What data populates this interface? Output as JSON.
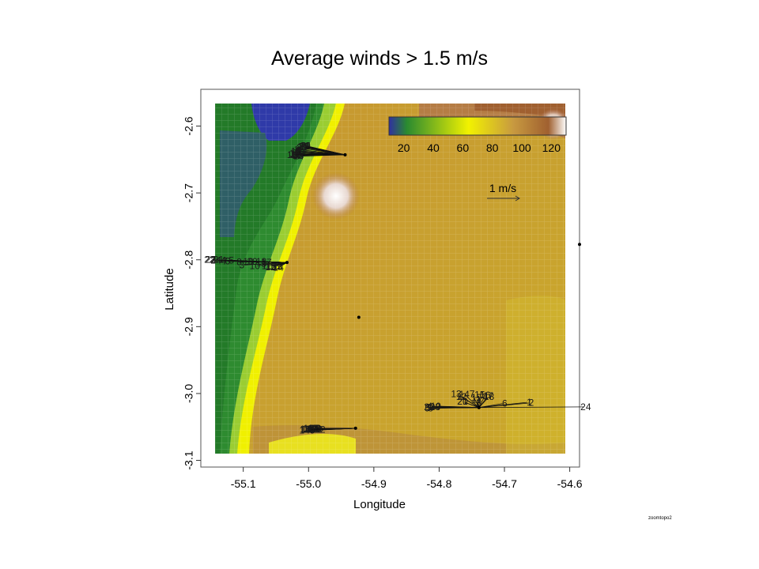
{
  "chart_data": {
    "type": "vector-field-heatmap",
    "title": "Average winds > 1.5 m/s",
    "xlabel": "Longitude",
    "ylabel": "Latitude",
    "xlim": [
      -55.165,
      -54.585
    ],
    "ylim": [
      -3.11,
      -2.545
    ],
    "x_ticks": [
      "-55.1",
      "-55.0",
      "-54.9",
      "-54.8",
      "-54.7",
      "-54.6"
    ],
    "x_tick_values": [
      -55.1,
      -55.0,
      -54.9,
      -54.8,
      -54.7,
      -54.6
    ],
    "y_ticks": [
      "-2.6",
      "-2.7",
      "-2.8",
      "-2.9",
      "-3.0",
      "-3.1"
    ],
    "y_tick_values": [
      -2.6,
      -2.7,
      -2.8,
      -2.9,
      -3.0,
      -3.1
    ],
    "colorbar": {
      "ticks": [
        "20",
        "40",
        "60",
        "80",
        "100",
        "120"
      ],
      "tick_values": [
        20,
        40,
        60,
        80,
        100,
        120
      ],
      "range": [
        10,
        130
      ],
      "colors": [
        "#3030a0",
        "#2a8a30",
        "#f2f200",
        "#c89a40",
        "#a06030",
        "#ffffff"
      ]
    },
    "scale_arrow_label": "1 m/s",
    "stations": [
      {
        "lon": -54.944,
        "lat": -2.643,
        "vectors": [
          {
            "hour": 1,
            "u": -0.62,
            "v": 0.13
          },
          {
            "hour": 2,
            "u": -0.64,
            "v": 0.12
          },
          {
            "hour": 3,
            "u": -0.6,
            "v": 0.11
          },
          {
            "hour": 4,
            "u": -0.66,
            "v": 0.1
          },
          {
            "hour": 5,
            "u": -0.68,
            "v": 0.06
          },
          {
            "hour": 6,
            "u": -0.7,
            "v": 0.05
          },
          {
            "hour": 7,
            "u": -0.72,
            "v": 0.03
          },
          {
            "hour": 8,
            "u": -0.7,
            "v": 0.08
          },
          {
            "hour": 9,
            "u": -0.71,
            "v": 0.0
          },
          {
            "hour": 10,
            "u": -0.72,
            "v": 0.0
          },
          {
            "hour": 11,
            "u": -0.74,
            "v": 0.01
          },
          {
            "hour": 12,
            "u": -0.7,
            "v": -0.01
          },
          {
            "hour": 13,
            "u": -0.74,
            "v": 0.02
          },
          {
            "hour": 14,
            "u": -0.68,
            "v": -0.02
          },
          {
            "hour": 15,
            "u": -0.7,
            "v": 0.0
          },
          {
            "hour": 16,
            "u": -0.72,
            "v": 0.05
          },
          {
            "hour": 17,
            "u": -0.66,
            "v": 0.03
          },
          {
            "hour": 18,
            "u": -0.78,
            "v": 0.0
          },
          {
            "hour": 19,
            "u": -0.58,
            "v": 0.13
          },
          {
            "hour": 20,
            "u": -0.58,
            "v": 0.13
          },
          {
            "hour": 21,
            "u": -0.56,
            "v": 0.13
          },
          {
            "hour": 22,
            "u": -0.6,
            "v": 0.12
          },
          {
            "hour": 23,
            "u": -0.61,
            "v": 0.12
          },
          {
            "hour": 24,
            "u": -0.63,
            "v": 0.11
          }
        ]
      },
      {
        "lon": -55.033,
        "lat": -2.804,
        "vectors": [
          {
            "hour": 1,
            "u": -1.08,
            "v": 0.04
          },
          {
            "hour": 2,
            "u": -1.1,
            "v": 0.04
          },
          {
            "hour": 3,
            "u": -0.66,
            "v": -0.04
          },
          {
            "hour": 4,
            "u": -0.94,
            "v": 0.03
          },
          {
            "hour": 5,
            "u": -0.82,
            "v": 0.03
          },
          {
            "hour": 6,
            "u": -0.88,
            "v": 0.02
          },
          {
            "hour": 7,
            "u": -0.92,
            "v": 0.02
          },
          {
            "hour": 8,
            "u": -0.7,
            "v": 0.01
          },
          {
            "hour": 9,
            "u": -0.32,
            "v": -0.02
          },
          {
            "hour": 10,
            "u": -0.46,
            "v": -0.05
          },
          {
            "hour": 11,
            "u": -0.28,
            "v": -0.05
          },
          {
            "hour": 12,
            "u": -0.22,
            "v": -0.06
          },
          {
            "hour": 13,
            "u": -0.12,
            "v": -0.05
          },
          {
            "hour": 14,
            "u": -0.1,
            "v": -0.06
          },
          {
            "hour": 15,
            "u": -0.21,
            "v": -0.05
          },
          {
            "hour": 16,
            "u": -0.16,
            "v": -0.05
          },
          {
            "hour": 17,
            "u": -0.28,
            "v": 0.0
          },
          {
            "hour": 18,
            "u": -0.36,
            "v": 0.01
          },
          {
            "hour": 19,
            "u": -0.56,
            "v": 0.01
          },
          {
            "hour": 20,
            "u": -0.5,
            "v": 0.01
          },
          {
            "hour": 21,
            "u": -1.02,
            "v": 0.04
          },
          {
            "hour": 22,
            "u": -1.16,
            "v": 0.04
          },
          {
            "hour": 23,
            "u": -1.14,
            "v": 0.04
          },
          {
            "hour": 24,
            "u": -1.06,
            "v": 0.03
          }
        ]
      },
      {
        "lon": -54.739,
        "lat": -3.021,
        "vectors": [
          {
            "hour": 1,
            "u": 0.74,
            "v": 0.08
          },
          {
            "hour": 2,
            "u": 0.77,
            "v": 0.07
          },
          {
            "hour": 3,
            "u": 0.0,
            "v": 0.03
          },
          {
            "hour": 4,
            "u": -0.72,
            "v": 0.02
          },
          {
            "hour": 5,
            "u": -0.76,
            "v": -0.01
          },
          {
            "hour": 6,
            "u": 0.36,
            "v": 0.06
          },
          {
            "hour": 7,
            "u": -0.09,
            "v": 0.18
          },
          {
            "hour": 8,
            "u": -0.71,
            "v": -0.01
          },
          {
            "hour": 9,
            "u": -0.74,
            "v": 0.0
          },
          {
            "hour": 10,
            "u": -0.63,
            "v": 0.02
          },
          {
            "hour": 11,
            "u": -0.03,
            "v": 0.09
          },
          {
            "hour": 12,
            "u": -0.24,
            "v": 0.15
          },
          {
            "hour": 13,
            "u": -0.32,
            "v": 0.19
          },
          {
            "hour": 14,
            "u": -0.2,
            "v": 0.18
          },
          {
            "hour": 15,
            "u": 0.01,
            "v": 0.16
          },
          {
            "hour": 16,
            "u": 0.08,
            "v": 0.16
          },
          {
            "hour": 17,
            "u": 0.12,
            "v": 0.15
          },
          {
            "hour": 18,
            "u": 0.13,
            "v": 0.14
          },
          {
            "hour": 19,
            "u": -0.03,
            "v": 0.12
          },
          {
            "hour": 20,
            "u": -0.22,
            "v": 0.08
          },
          {
            "hour": 21,
            "u": -0.22,
            "v": 0.08
          },
          {
            "hour": 22,
            "u": -0.73,
            "v": 0.01
          },
          {
            "hour": 23,
            "u": -0.64,
            "v": 0.01
          },
          {
            "hour": 24,
            "u": 1.61,
            "v": 0.01
          }
        ]
      },
      {
        "lon": -54.928,
        "lat": -3.052,
        "vectors": [
          {
            "hour": 1,
            "u": -0.66,
            "v": 0.0
          },
          {
            "hour": 2,
            "u": -0.66,
            "v": -0.02
          },
          {
            "hour": 3,
            "u": -0.7,
            "v": -0.02
          },
          {
            "hour": 4,
            "u": -0.65,
            "v": -0.03
          },
          {
            "hour": 5,
            "u": -0.63,
            "v": -0.03
          },
          {
            "hour": 6,
            "u": -0.62,
            "v": -0.01
          },
          {
            "hour": 7,
            "u": -0.58,
            "v": -0.01
          },
          {
            "hour": 8,
            "u": -0.6,
            "v": 0.0
          },
          {
            "hour": 9,
            "u": -0.53,
            "v": 0.0
          },
          {
            "hour": 10,
            "u": -0.59,
            "v": 0.0
          },
          {
            "hour": 11,
            "u": -0.69,
            "v": -0.01
          },
          {
            "hour": 12,
            "u": -0.51,
            "v": -0.02
          },
          {
            "hour": 13,
            "u": -0.63,
            "v": -0.02
          },
          {
            "hour": 14,
            "u": -0.75,
            "v": -0.03
          },
          {
            "hour": 15,
            "u": -0.72,
            "v": -0.02
          },
          {
            "hour": 16,
            "u": -0.74,
            "v": -0.01
          },
          {
            "hour": 17,
            "u": -0.62,
            "v": 0.0
          },
          {
            "hour": 18,
            "u": -0.59,
            "v": 0.0
          },
          {
            "hour": 19,
            "u": -0.69,
            "v": 0.0
          },
          {
            "hour": 20,
            "u": -0.64,
            "v": -0.01
          },
          {
            "hour": 21,
            "u": -0.63,
            "v": -0.02
          },
          {
            "hour": 22,
            "u": -0.55,
            "v": -0.02
          },
          {
            "hour": 23,
            "u": -0.57,
            "v": -0.01
          },
          {
            "hour": 24,
            "u": -0.67,
            "v": -0.02
          }
        ]
      }
    ],
    "extra_points": [
      {
        "lon": -54.923,
        "lat": -2.886
      },
      {
        "lon": -54.585,
        "lat": -2.777
      }
    ]
  },
  "footnote": "zoomtopo2"
}
